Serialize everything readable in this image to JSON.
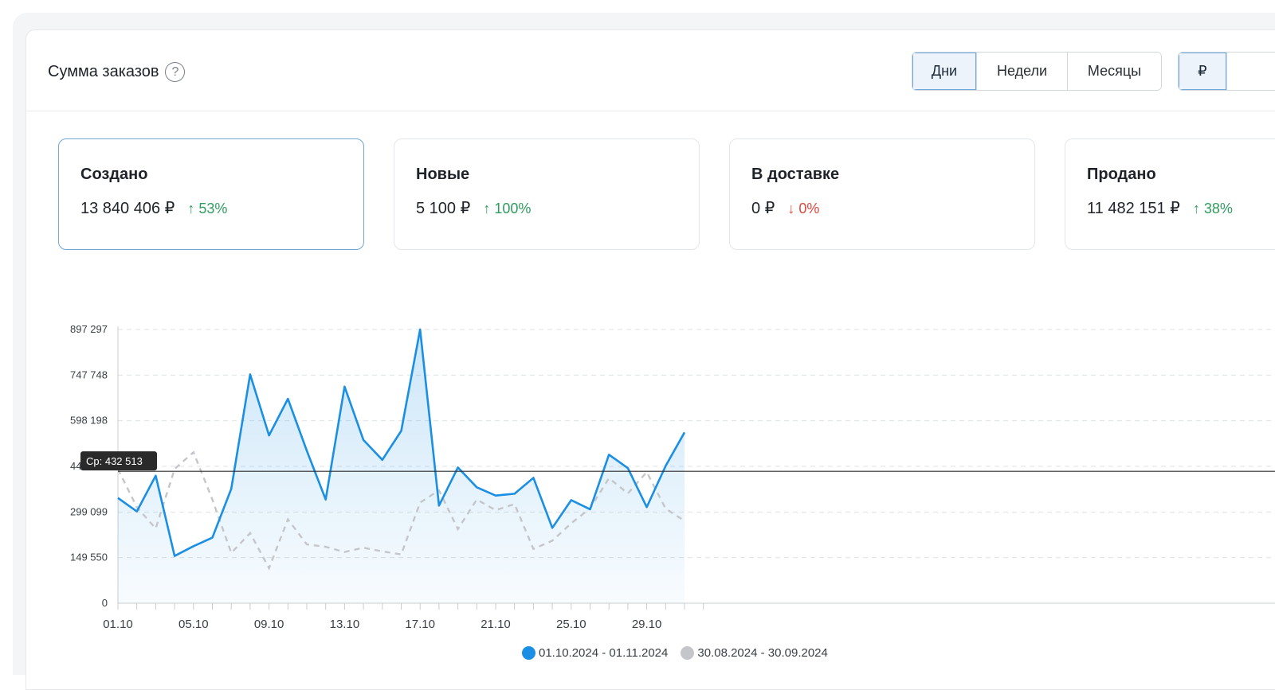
{
  "header": {
    "title": "Сумма заказов",
    "help_glyph": "?",
    "period_buttons": [
      "Дни",
      "Недели",
      "Месяцы"
    ],
    "active_period": "Дни",
    "currency_button": "₽"
  },
  "stats": [
    {
      "name": "Создано",
      "value": "13 840 406 ₽",
      "delta": "↑ 53%",
      "direction": "up",
      "active": true
    },
    {
      "name": "Новые",
      "value": "5 100 ₽",
      "delta": "↑ 100%",
      "direction": "up",
      "active": false
    },
    {
      "name": "В доставке",
      "value": "0 ₽",
      "delta": "↓ 0%",
      "direction": "down",
      "active": false
    },
    {
      "name": "Продано",
      "value": "11 482 151 ₽",
      "delta": "↑ 38%",
      "direction": "up",
      "active": false
    }
  ],
  "colors": {
    "accent": "#1a8fe3",
    "compare": "#c4c6ca",
    "up": "#2e9c5f",
    "down": "#e0473c"
  },
  "chart_data": {
    "type": "line",
    "y_ticks": [
      "0",
      "149 550",
      "299 099",
      "448 649",
      "598 198",
      "747 748",
      "897 297"
    ],
    "ylim": [
      0,
      897297
    ],
    "x_tick_labels": [
      "01.10",
      "05.10",
      "09.10",
      "13.10",
      "17.10",
      "21.10",
      "25.10",
      "29.10"
    ],
    "avg_label": "Ср: 432 513",
    "avg_value": 432513,
    "series": [
      {
        "name": "01.10.2024 - 01.11.2024",
        "color": "#1a8fe3",
        "values": [
          345000,
          301000,
          418000,
          155000,
          187000,
          215000,
          375000,
          750000,
          550000,
          670000,
          500000,
          340000,
          710000,
          535000,
          470000,
          565000,
          897297,
          320000,
          445000,
          380000,
          353000,
          359000,
          411000,
          247000,
          338000,
          308000,
          487000,
          443000,
          315000,
          450000,
          560000
        ]
      },
      {
        "name": "30.08.2024 - 30.09.2024",
        "color": "#c4c6ca",
        "values": [
          440000,
          315000,
          245000,
          440000,
          495000,
          340000,
          165000,
          230000,
          115000,
          275000,
          193000,
          185000,
          168000,
          182000,
          170000,
          160000,
          330000,
          370000,
          243000,
          340000,
          305000,
          325000,
          178000,
          205000,
          262000,
          311000,
          410000,
          360000,
          430000,
          310000,
          270000
        ]
      }
    ]
  }
}
